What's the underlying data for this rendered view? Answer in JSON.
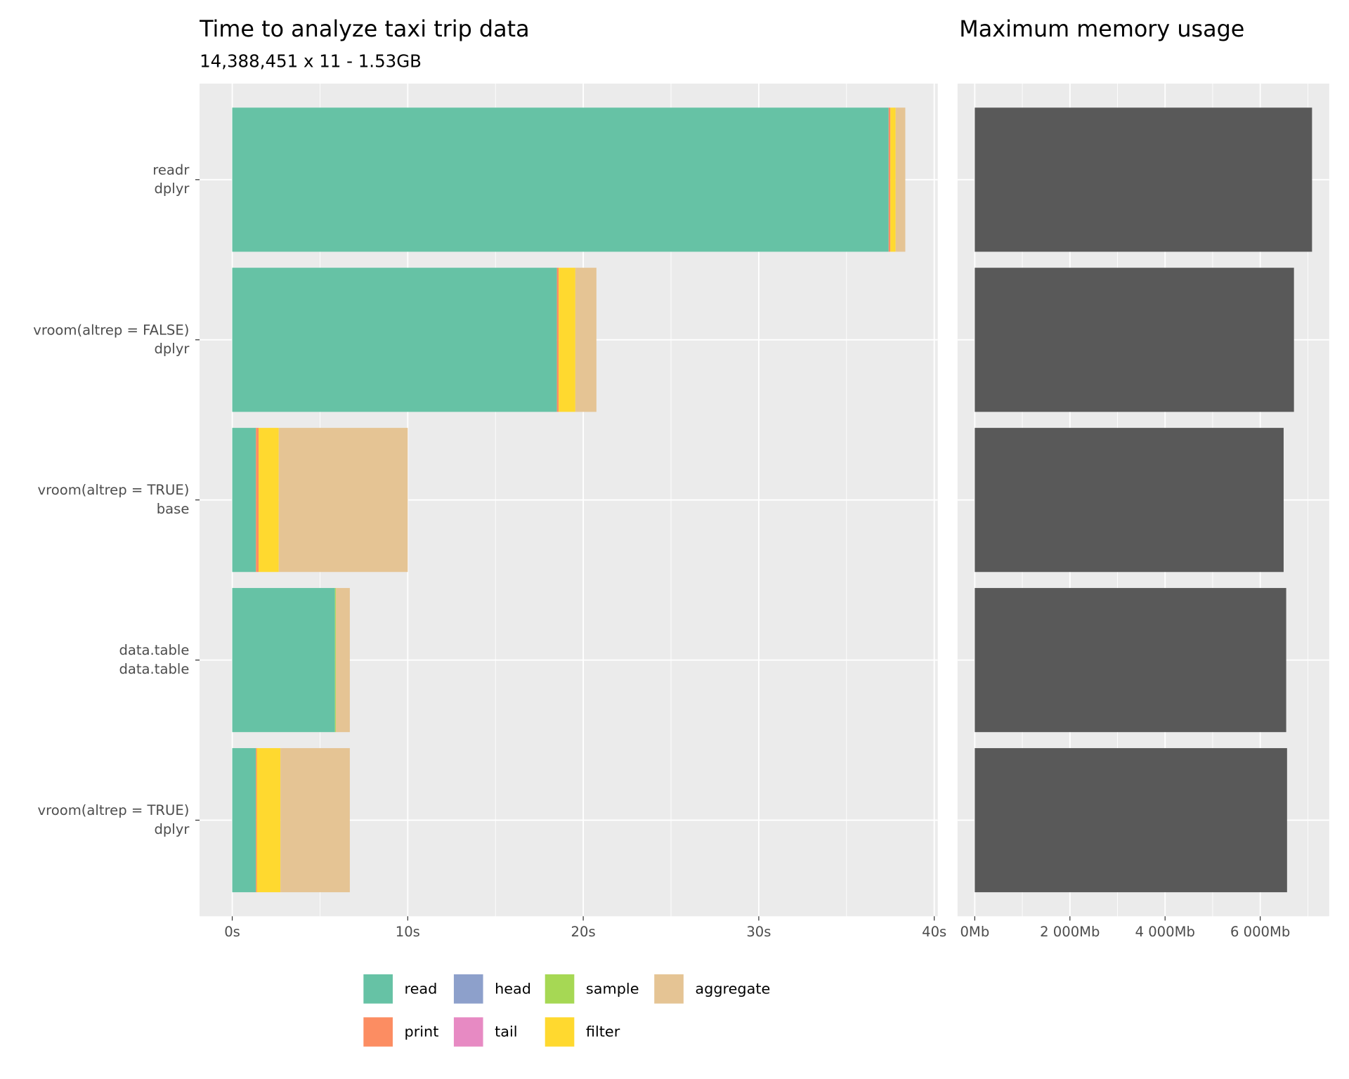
{
  "chart_data": [
    {
      "type": "bar",
      "orientation": "horizontal",
      "stacked": true,
      "title": "Time to analyze taxi trip data",
      "subtitle": "14,388,451 x 11 - 1.53GB",
      "categories": [
        [
          "readr",
          "dplyr"
        ],
        [
          "vroom(altrep = FALSE)",
          "dplyr"
        ],
        [
          "vroom(altrep = TRUE)",
          "base"
        ],
        [
          "data.table",
          "data.table"
        ],
        [
          "vroom(altrep = TRUE)",
          "dplyr"
        ]
      ],
      "series": [
        {
          "name": "read",
          "color": "#66c2a5",
          "values": [
            37.4,
            18.5,
            1.35,
            5.85,
            1.35
          ]
        },
        {
          "name": "print",
          "color": "#fc8d62",
          "values": [
            0.1,
            0.1,
            0.15,
            0,
            0.05
          ]
        },
        {
          "name": "head",
          "color": "#8da0cb",
          "values": [
            0,
            0,
            0,
            0,
            0
          ]
        },
        {
          "name": "tail",
          "color": "#e78ac3",
          "values": [
            0,
            0,
            0,
            0,
            0
          ]
        },
        {
          "name": "sample",
          "color": "#a6d854",
          "values": [
            0,
            0,
            0,
            0.05,
            0
          ]
        },
        {
          "name": "filter",
          "color": "#ffd92f",
          "values": [
            0.3,
            0.95,
            1.15,
            0,
            1.35
          ]
        },
        {
          "name": "aggregate",
          "color": "#e5c494",
          "values": [
            0.55,
            1.2,
            7.35,
            0.8,
            3.95
          ]
        }
      ],
      "xlim": [
        -1.86,
        40.2
      ],
      "xticks": [
        {
          "value": 0,
          "label": "0s"
        },
        {
          "value": 10,
          "label": "10s"
        },
        {
          "value": 20,
          "label": "20s"
        },
        {
          "value": 30,
          "label": "30s"
        },
        {
          "value": 40,
          "label": "40s"
        }
      ],
      "x_minor_ticks": [
        5,
        15,
        25,
        35
      ],
      "grid": true
    },
    {
      "type": "bar",
      "orientation": "horizontal",
      "title": "Maximum memory usage",
      "values": [
        7089,
        6709,
        6492,
        6546,
        6564
      ],
      "color": "#595959",
      "xlim": [
        -362,
        7450
      ],
      "xticks": [
        {
          "value": 0,
          "label": "0Mb"
        },
        {
          "value": 2000,
          "label": "2 000Mb"
        },
        {
          "value": 4000,
          "label": "4 000Mb"
        },
        {
          "value": 6000,
          "label": "6 000Mb"
        }
      ],
      "x_minor_ticks": [
        1000,
        3000,
        5000,
        7000
      ],
      "grid": true
    }
  ]
}
